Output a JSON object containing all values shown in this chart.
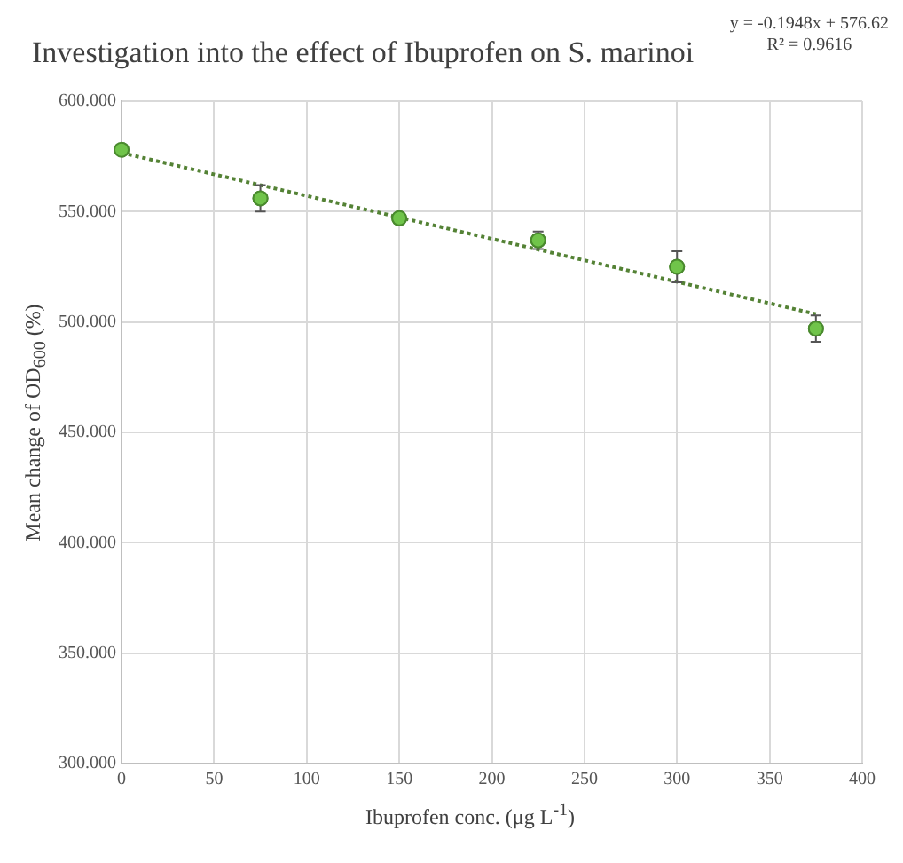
{
  "chart_data": {
    "type": "scatter",
    "title": "Investigation into the effect of Ibuprofen on S. marinoi",
    "xlabel": "Ibuprofen conc. (μg L$^{-1}$)",
    "ylabel": "Mean change of OD$_{600}$ (%)",
    "annotations": [
      "y = -0.1948x + 576.62",
      "R² = 0.9616"
    ],
    "x": [
      0,
      75,
      150,
      225,
      300,
      375
    ],
    "series": [
      {
        "color": "#70c44a",
        "values": [
          578,
          556,
          547,
          537,
          525,
          497
        ],
        "errors": [
          null,
          6,
          null,
          4,
          7,
          6
        ],
        "marker": "circle"
      },
      {
        "type": "line",
        "color": "#548235",
        "x": [
          0,
          375
        ],
        "values": [
          576.6,
          503.6
        ],
        "line_style": "dotted",
        "marker": "none"
      }
    ],
    "xlim": [
      0,
      400
    ],
    "xticks": [
      0,
      50,
      100,
      150,
      200,
      250,
      300,
      350,
      400
    ],
    "ylim": [
      300,
      600
    ],
    "yticks": [
      {
        "value": 300,
        "label": "300.000"
      },
      {
        "value": 350,
        "label": "350.000"
      },
      {
        "value": 400,
        "label": "400.000"
      },
      {
        "value": 450,
        "label": "450.000"
      },
      {
        "value": 500,
        "label": "500.000"
      },
      {
        "value": 550,
        "label": "550.000"
      },
      {
        "value": 600,
        "label": "600.000"
      }
    ],
    "grid": true,
    "legend": false
  }
}
